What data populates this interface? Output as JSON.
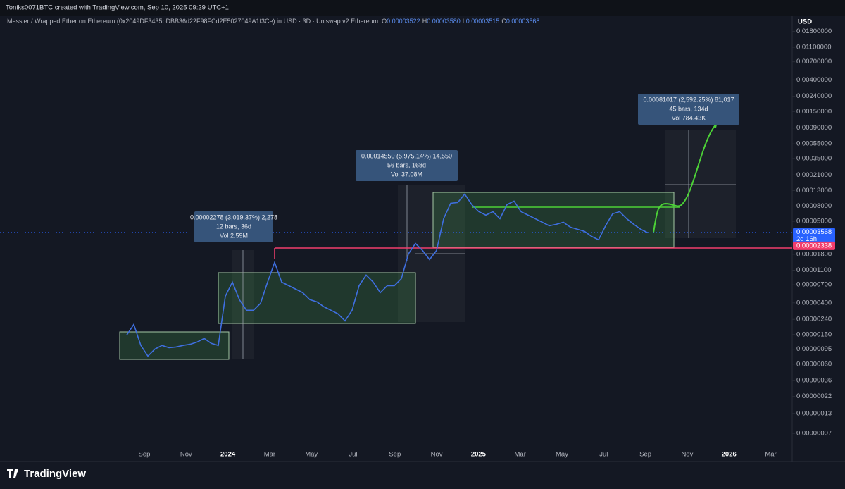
{
  "header": {
    "credit": "Toniks0071BTC created with TradingView.com, Sep 10, 2025 09:29 UTC+1",
    "symbol": "Messier / Wrapped Ether on Ethereum (0x2049DF3435bDBB36d22F98FCd2E5027049A1f3Ce) in USD · 3D · Uniswap v2 Ethereum",
    "ohlc": [
      {
        "key": "O",
        "value": "0.00003522"
      },
      {
        "key": "H",
        "value": "0.00003580"
      },
      {
        "key": "L",
        "value": "0.00003515"
      },
      {
        "key": "C",
        "value": "0.00003568"
      }
    ]
  },
  "currency": "USD",
  "chart_data": {
    "type": "line",
    "log_scale": true,
    "color": "#3f6fe0",
    "ylim": [
      3e-08,
      0.03
    ],
    "yticks": [
      {
        "value": 0.018,
        "label": "0.01800000"
      },
      {
        "value": 0.011,
        "label": "0.01100000"
      },
      {
        "value": 0.007,
        "label": "0.00700000"
      },
      {
        "value": 0.004,
        "label": "0.00400000"
      },
      {
        "value": 0.0024,
        "label": "0.00240000"
      },
      {
        "value": 0.0015,
        "label": "0.00150000"
      },
      {
        "value": 0.0009,
        "label": "0.00090000"
      },
      {
        "value": 0.00055,
        "label": "0.00055000"
      },
      {
        "value": 0.00035,
        "label": "0.00035000"
      },
      {
        "value": 0.00021,
        "label": "0.00021000"
      },
      {
        "value": 0.00013,
        "label": "0.00013000"
      },
      {
        "value": 8e-05,
        "label": "0.00008000"
      },
      {
        "value": 5e-05,
        "label": "0.00005000"
      },
      {
        "value": 1.8e-05,
        "label": "0.00001800"
      },
      {
        "value": 1.1e-05,
        "label": "0.00001100"
      },
      {
        "value": 7e-06,
        "label": "0.00000700"
      },
      {
        "value": 4e-06,
        "label": "0.00000400"
      },
      {
        "value": 2.4e-06,
        "label": "0.00000240"
      },
      {
        "value": 1.5e-06,
        "label": "0.00000150"
      },
      {
        "value": 9.5e-07,
        "label": "0.00000095"
      },
      {
        "value": 6e-07,
        "label": "0.00000060"
      },
      {
        "value": 3.6e-07,
        "label": "0.00000036"
      },
      {
        "value": 2.2e-07,
        "label": "0.00000022"
      },
      {
        "value": 1.3e-07,
        "label": "0.00000013"
      },
      {
        "value": 7e-08,
        "label": "0.00000007"
      }
    ],
    "x_labels": [
      "Sep",
      "Nov",
      "2024",
      "Mar",
      "May",
      "Jul",
      "Sep",
      "Nov",
      "2025",
      "Mar",
      "May",
      "Jul",
      "Sep",
      "Nov",
      "2026",
      "Mar"
    ],
    "values": [
      1.48e-06,
      2.05e-06,
      1.07e-06,
      7.69e-07,
      9.55e-07,
      1.07e-06,
      9.98e-07,
      1.02e-06,
      1.07e-06,
      1.11e-06,
      1.19e-06,
      1.33e-06,
      1.14e-06,
      1.07e-06,
      4.91e-06,
      7.6e-06,
      4.41e-06,
      3.18e-06,
      3.18e-06,
      3.95e-06,
      7.6e-06,
      1.4e-05,
      7.6e-06,
      6.82e-06,
      6.11e-06,
      5.48e-06,
      4.41e-06,
      4.13e-06,
      3.54e-06,
      3.18e-06,
      2.85e-06,
      2.29e-06,
      3.18e-06,
      6.82e-06,
      9.46e-06,
      7.6e-06,
      5.48e-06,
      6.82e-06,
      6.82e-06,
      8.48e-06,
      1.82e-05,
      2.52e-05,
      2.03e-05,
      1.53e-05,
      2.03e-05,
      5.42e-05,
      8.75e-05,
      8.95e-05,
      0.000116,
      8.39e-05,
      6.74e-05,
      6.04e-05,
      6.74e-05,
      5.42e-05,
      8.39e-05,
      9.35e-05,
      6.74e-05,
      6.04e-05,
      5.42e-05,
      4.86e-05,
      4.36e-05,
      4.55e-05,
      4.86e-05,
      4.17e-05,
      3.91e-05,
      3.66e-05,
      3.14e-05,
      2.82e-05,
      4.36e-05,
      6.31e-05,
      6.74e-05,
      5.42e-05,
      4.55e-05,
      3.91e-05,
      3.5e-05
    ]
  },
  "price_labels": {
    "last": {
      "value": 3.568e-05,
      "label": "0.00003568"
    },
    "countdown": "2d 16h",
    "line": {
      "value": 2.338e-05,
      "label": "0.00002338"
    }
  },
  "annotations": [
    {
      "lines": [
        "0.00002278 (3,019.37%) 2,278",
        "12 bars, 36d",
        "Vol 2.59M"
      ]
    },
    {
      "lines": [
        "0.00014550 (5,975.14%) 14,550",
        "56 bars, 168d",
        "Vol 37.08M"
      ]
    },
    {
      "lines": [
        "0.00081017 (2,592.25%) 81,017",
        "45 bars, 134d",
        "Vol 784.43K"
      ]
    }
  ],
  "footer": {
    "brand": "TradingView"
  }
}
